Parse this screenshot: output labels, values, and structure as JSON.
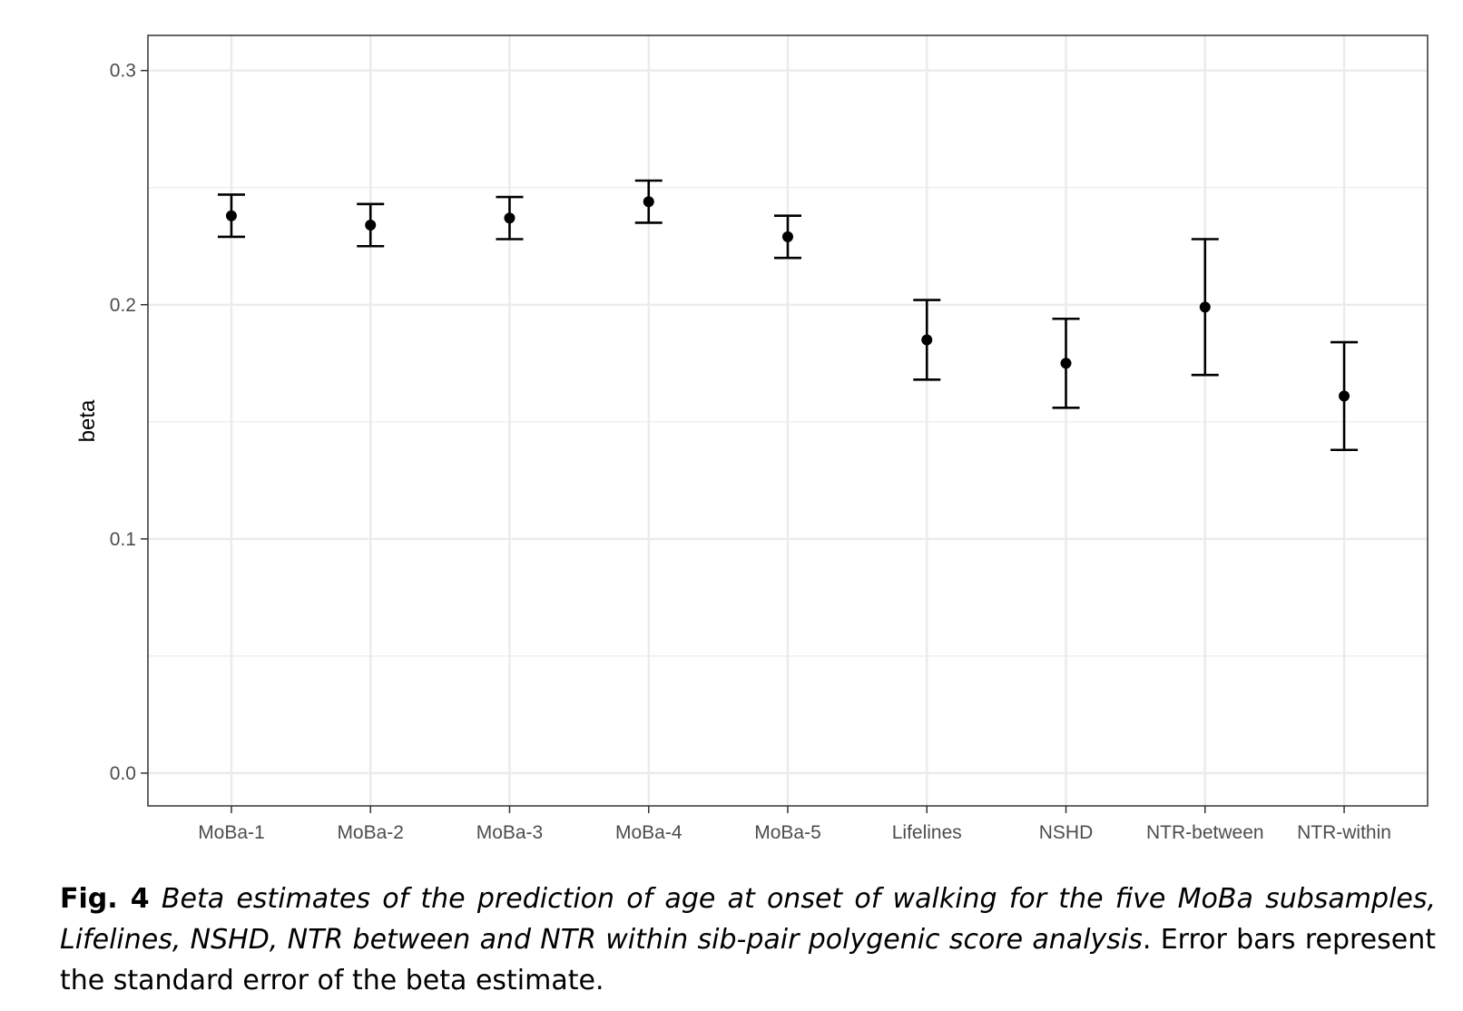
{
  "chart_data": {
    "type": "scatter",
    "subtype": "point-with-error-bars",
    "ylabel": "beta",
    "xlabel": "",
    "categories": [
      "MoBa-1",
      "MoBa-2",
      "MoBa-3",
      "MoBa-4",
      "MoBa-5",
      "Lifelines",
      "NSHD",
      "NTR-between",
      "NTR-within"
    ],
    "series": [
      {
        "values": [
          0.238,
          0.234,
          0.237,
          0.244,
          0.229,
          0.185,
          0.175,
          0.199,
          0.161
        ],
        "lower": [
          0.229,
          0.225,
          0.228,
          0.235,
          0.22,
          0.168,
          0.156,
          0.17,
          0.138
        ],
        "upper": [
          0.247,
          0.243,
          0.246,
          0.253,
          0.238,
          0.202,
          0.194,
          0.228,
          0.184
        ]
      }
    ],
    "ylim": [
      -0.014,
      0.315
    ],
    "yticks": [
      0.0,
      0.1,
      0.2,
      0.3
    ],
    "ytick_labels": [
      "0.0",
      "0.1",
      "0.2",
      "0.3"
    ],
    "grid": true,
    "colors": {
      "point": "#000000",
      "grid": "#ebebeb",
      "border": "#333333",
      "tick_text": "#4d4d4d"
    }
  },
  "caption": {
    "label": "Fig. 4",
    "italic": "Beta estimates of the prediction of age at onset of walking for the five MoBa subsamples, Lifelines, NSHD, NTR between and NTR within sib-pair polygenic score analysis",
    "rest": ". Error bars represent the standard error of the beta estimate."
  }
}
